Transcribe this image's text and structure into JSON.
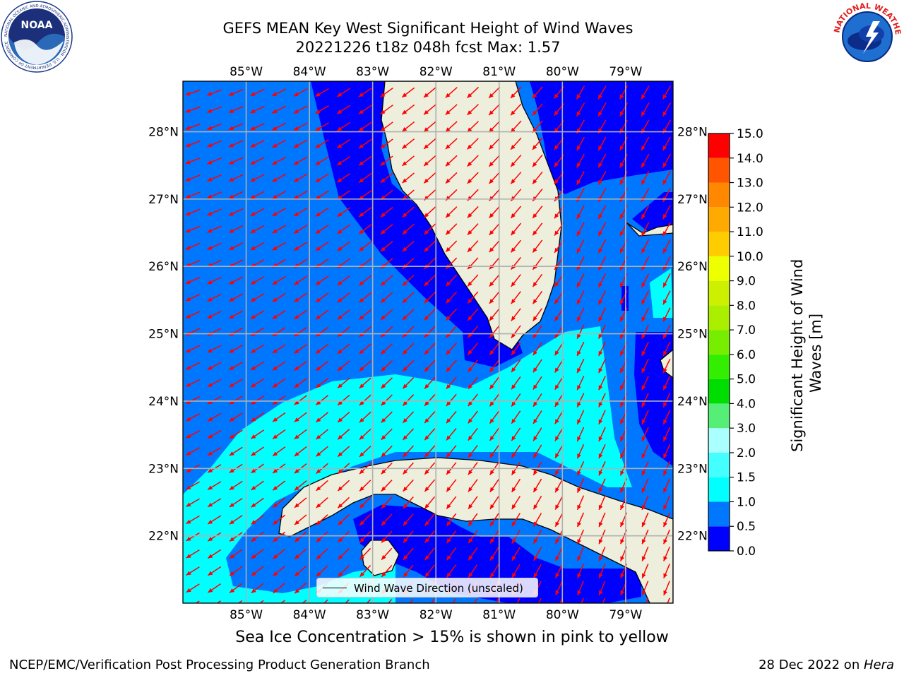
{
  "title": {
    "line1": "GEFS MEAN Key West Significant Height of Wind Waves",
    "line2": "20221226 t18z 048h fcst   Max: 1.57"
  },
  "map": {
    "projection": "PlateCarree",
    "lon_range": [
      -86.0,
      -78.25
    ],
    "lat_range": [
      21.0,
      28.75
    ],
    "lon_ticks": [
      "85°W",
      "84°W",
      "83°W",
      "82°W",
      "81°W",
      "80°W",
      "79°W"
    ],
    "lat_ticks": [
      "28°N",
      "27°N",
      "26°N",
      "25°N",
      "24°N",
      "23°N",
      "22°N"
    ],
    "gridlines": true,
    "vector_color": "#ff0000",
    "land_color": "#eeeedd",
    "legend": {
      "entry": "Wind Wave Direction (unscaled)",
      "placement": "lower-center"
    }
  },
  "colorbar": {
    "label": "Significant Height of Wind Waves [m]",
    "ticks": [
      "15.0",
      "14.0",
      "13.0",
      "12.0",
      "11.0",
      "10.0",
      "9.0",
      "8.0",
      "7.0",
      "6.0",
      "5.0",
      "4.0",
      "3.0",
      "2.0",
      "1.5",
      "1.0",
      "0.5",
      "0.0"
    ],
    "bins": [
      {
        "lo": 0.0,
        "hi": 0.5,
        "color": "#0000ff"
      },
      {
        "lo": 0.5,
        "hi": 1.0,
        "color": "#0077ff"
      },
      {
        "lo": 1.0,
        "hi": 1.5,
        "color": "#00ffff"
      },
      {
        "lo": 1.5,
        "hi": 2.0,
        "color": "#44ffff"
      },
      {
        "lo": 2.0,
        "hi": 3.0,
        "color": "#aaffff"
      },
      {
        "lo": 3.0,
        "hi": 4.0,
        "color": "#55ee77"
      },
      {
        "lo": 4.0,
        "hi": 5.0,
        "color": "#00dd00"
      },
      {
        "lo": 5.0,
        "hi": 6.0,
        "color": "#33ee00"
      },
      {
        "lo": 6.0,
        "hi": 7.0,
        "color": "#77ee00"
      },
      {
        "lo": 7.0,
        "hi": 8.0,
        "color": "#aaee00"
      },
      {
        "lo": 8.0,
        "hi": 9.0,
        "color": "#ccf000"
      },
      {
        "lo": 9.0,
        "hi": 10.0,
        "color": "#eeff00"
      },
      {
        "lo": 10.0,
        "hi": 11.0,
        "color": "#ffcc00"
      },
      {
        "lo": 11.0,
        "hi": 12.0,
        "color": "#ffaa00"
      },
      {
        "lo": 12.0,
        "hi": 13.0,
        "color": "#ff8800"
      },
      {
        "lo": 13.0,
        "hi": 14.0,
        "color": "#ff5500"
      },
      {
        "lo": 14.0,
        "hi": 15.0,
        "color": "#ff0000"
      }
    ]
  },
  "logos": {
    "left": "NOAA",
    "left_ring": "NATIONAL OCEANIC AND ATMOSPHERIC ADMINISTRATION · U.S. DEPARTMENT OF COMMERCE",
    "right_ring": "NATIONAL WEATHER SERVICE"
  },
  "ice_note": "Sea Ice Concentration > 15% is shown in pink to yellow",
  "footer": {
    "left": "NCEP/EMC/Verification Post Processing Product Generation Branch",
    "right_date": "28 Dec 2022 on ",
    "right_host": "Hera"
  }
}
